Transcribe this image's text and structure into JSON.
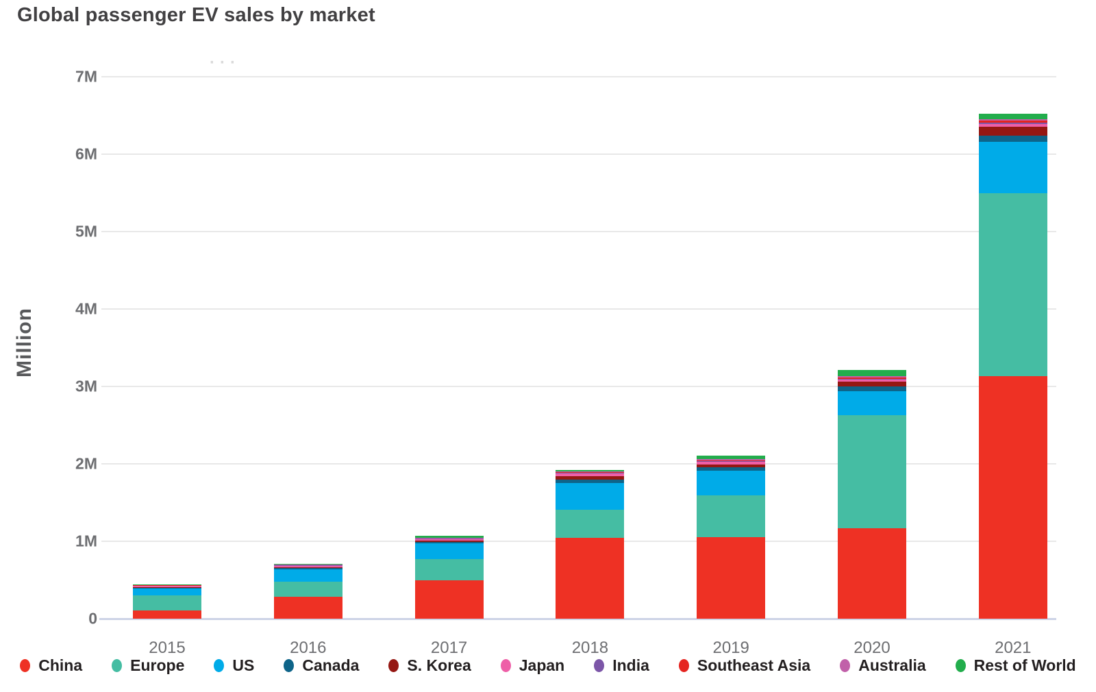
{
  "page": {
    "title": "Global passenger EV sales by market",
    "overflow_hint": "···"
  },
  "chart_data": {
    "type": "bar",
    "stacked": true,
    "title": "Global passenger EV sales by market",
    "ylabel": "Million",
    "unit": "million vehicles",
    "grid": true,
    "legend_position": "bottom",
    "ylim": [
      0,
      7
    ],
    "categories": [
      "2015",
      "2016",
      "2017",
      "2018",
      "2019",
      "2020",
      "2021"
    ],
    "yticks": [
      "7M",
      "6M",
      "5M",
      "4M",
      "3M",
      "2M",
      "1M",
      "0"
    ],
    "ytick_values": [
      7,
      6,
      5,
      4,
      3,
      2,
      1,
      0
    ],
    "series": [
      {
        "name": "China",
        "color": "#ee3124",
        "values": [
          0.11,
          0.28,
          0.5,
          1.04,
          1.05,
          1.17,
          3.13
        ]
      },
      {
        "name": "Europe",
        "color": "#45bda3",
        "values": [
          0.19,
          0.2,
          0.27,
          0.37,
          0.54,
          1.46,
          2.37
        ]
      },
      {
        "name": "US",
        "color": "#00abe8",
        "values": [
          0.09,
          0.155,
          0.2,
          0.345,
          0.32,
          0.31,
          0.66
        ]
      },
      {
        "name": "Canada",
        "color": "#0e6489",
        "values": [
          0.012,
          0.022,
          0.025,
          0.042,
          0.05,
          0.06,
          0.08
        ]
      },
      {
        "name": "S. Korea",
        "color": "#951712",
        "values": [
          0.004,
          0.006,
          0.012,
          0.042,
          0.035,
          0.06,
          0.11
        ]
      },
      {
        "name": "Japan",
        "color": "#ee5fa7",
        "values": [
          0.026,
          0.028,
          0.03,
          0.045,
          0.035,
          0.03,
          0.04
        ]
      },
      {
        "name": "India",
        "color": "#7c56a8",
        "values": [
          0.002,
          0.002,
          0.002,
          0.003,
          0.003,
          0.004,
          0.015
        ]
      },
      {
        "name": "Southeast Asia",
        "color": "#e52420",
        "values": [
          0.002,
          0.002,
          0.003,
          0.005,
          0.01,
          0.02,
          0.025
        ]
      },
      {
        "name": "Australia",
        "color": "#c160a9",
        "values": [
          0.004,
          0.005,
          0.006,
          0.012,
          0.015,
          0.018,
          0.025
        ]
      },
      {
        "name": "Rest of World",
        "color": "#22ad4c",
        "values": [
          0.005,
          0.01,
          0.025,
          0.02,
          0.05,
          0.08,
          0.07
        ]
      }
    ]
  }
}
